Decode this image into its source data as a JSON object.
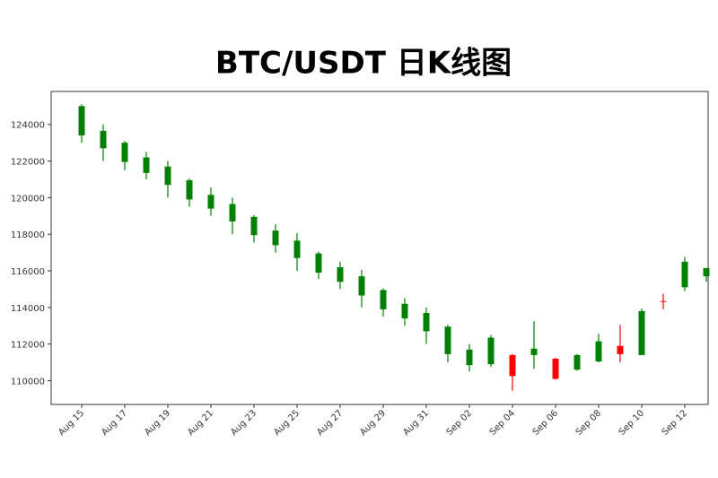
{
  "chart_data": {
    "type": "candlestick",
    "title": "BTC/USDT 日K线图",
    "categories": [
      "Aug 15",
      null,
      "Aug 17",
      null,
      "Aug 19",
      null,
      "Aug 21",
      null,
      "Aug 23",
      null,
      "Aug 25",
      null,
      "Aug 27",
      null,
      "Aug 29",
      null,
      "Aug 31",
      null,
      "Sep 02",
      null,
      "Sep 04",
      null,
      "Sep 06",
      null,
      "Sep 08",
      null,
      "Sep 10",
      null,
      "Sep 12",
      null
    ],
    "open": [
      125000,
      123650,
      123000,
      122200,
      121700,
      120950,
      120150,
      119650,
      118950,
      118200,
      117650,
      116950,
      116200,
      115700,
      114950,
      114200,
      113700,
      112950,
      111700,
      112350,
      110250,
      111750,
      110100,
      111400,
      112150,
      111450,
      113800,
      114300,
      116500,
      116150
    ],
    "high": [
      125100,
      124000,
      123100,
      122500,
      122000,
      121050,
      120550,
      120000,
      119050,
      118550,
      118050,
      117050,
      116500,
      116050,
      115050,
      114500,
      114000,
      113050,
      112000,
      112500,
      111450,
      113250,
      111250,
      111450,
      112550,
      113050,
      113950,
      114750,
      116750,
      116150
    ],
    "low": [
      123000,
      122000,
      121500,
      121000,
      120000,
      119500,
      119000,
      118000,
      117550,
      117000,
      116000,
      115550,
      115000,
      114000,
      113500,
      113000,
      112000,
      111000,
      110500,
      110750,
      109450,
      110650,
      110050,
      110550,
      111000,
      111000,
      111400,
      113900,
      114900,
      115400
    ],
    "close": [
      123400,
      122700,
      121950,
      121350,
      120700,
      119900,
      119400,
      118700,
      117950,
      117400,
      116700,
      115900,
      115400,
      114650,
      113900,
      113400,
      112700,
      111450,
      110850,
      110900,
      111400,
      111400,
      111200,
      110600,
      111050,
      111900,
      111400,
      114350,
      115100,
      115700
    ],
    "up_color": "#ff0000",
    "down_color": "#008000",
    "ylim": [
      108700,
      125800
    ],
    "yticks": [
      110000,
      112000,
      114000,
      116000,
      118000,
      120000,
      122000,
      124000
    ]
  }
}
